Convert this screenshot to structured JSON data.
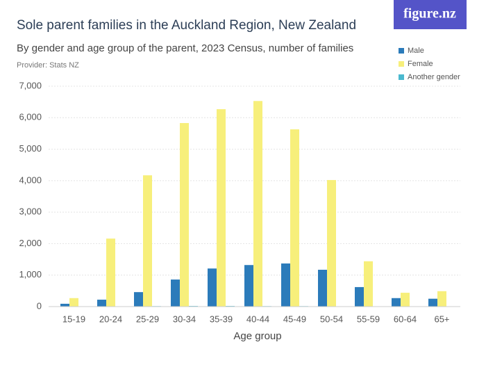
{
  "logo": "figure.nz",
  "chart_data": {
    "type": "bar",
    "title": "Sole parent families in the Auckland Region, New Zealand",
    "subtitle": "By gender and age group of the parent, 2023 Census, number of families",
    "provider": "Provider: Stats NZ",
    "x_label": "Age group",
    "categories": [
      "15-19",
      "20-24",
      "25-29",
      "30-34",
      "35-39",
      "40-44",
      "45-49",
      "50-54",
      "55-59",
      "60-64",
      "65+"
    ],
    "series": [
      {
        "name": "Male",
        "color": "#2b7bba",
        "values": [
          90,
          220,
          460,
          860,
          1210,
          1320,
          1370,
          1170,
          620,
          270,
          250
        ]
      },
      {
        "name": "Female",
        "color": "#f7ef7b",
        "values": [
          270,
          2160,
          4170,
          5830,
          6270,
          6530,
          5630,
          4020,
          1440,
          440,
          490
        ]
      },
      {
        "name": "Another gender",
        "color": "#4ab9cf",
        "values": [
          10,
          10,
          15,
          20,
          20,
          15,
          15,
          10,
          5,
          0,
          0
        ]
      }
    ],
    "ylim": [
      0,
      7000
    ],
    "yticks": [
      0,
      {
        "value": 1000,
        "label": "1,000"
      },
      {
        "value": 2000,
        "label": "2,000"
      },
      {
        "value": 3000,
        "label": "3,000"
      },
      {
        "value": 4000,
        "label": "4,000"
      },
      {
        "value": 5000,
        "label": "5,000"
      },
      {
        "value": 6000,
        "label": "6,000"
      },
      {
        "value": 7000,
        "label": "7,000"
      }
    ],
    "grid": true,
    "legend_position": "top-right"
  }
}
